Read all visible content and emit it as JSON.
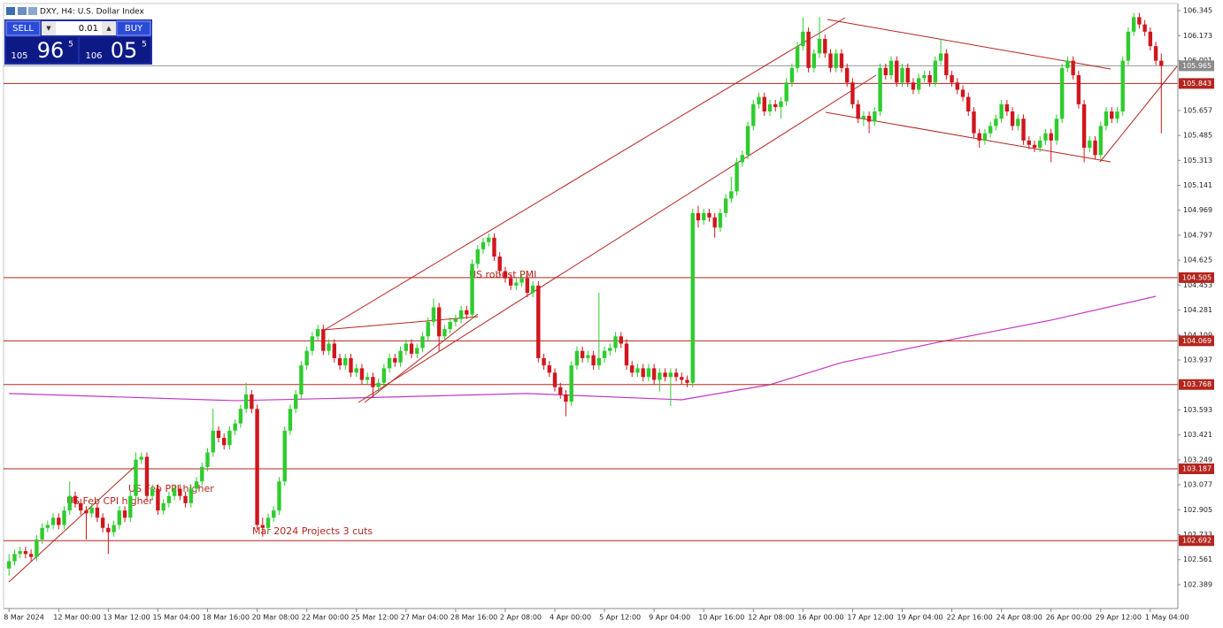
{
  "chart_data": {
    "type": "candlestick",
    "title": "DXY, H4: U.S. Dollar Index",
    "up_color": "#2ecc2e",
    "down_color": "#d0161d",
    "level_color": "#b3261e",
    "price_color": "#9a9a9a",
    "ylim": [
      102.224,
      106.394
    ],
    "xlim": [
      -1,
      212
    ],
    "yticks": [
      106.345,
      106.173,
      106.001,
      105.657,
      105.485,
      105.313,
      105.141,
      104.969,
      104.797,
      104.625,
      104.453,
      104.281,
      104.109,
      103.937,
      103.593,
      103.421,
      103.249,
      103.077,
      102.905,
      102.733,
      102.561,
      102.389
    ],
    "xticks": [
      {
        "value": 0,
        "label": "8 Mar 2024"
      },
      {
        "value": 9,
        "label": "12 Mar 00:00"
      },
      {
        "value": 18,
        "label": "13 Mar 12:00"
      },
      {
        "value": 27,
        "label": "15 Mar 04:00"
      },
      {
        "value": 36,
        "label": "18 Mar 16:00"
      },
      {
        "value": 45,
        "label": "20 Mar 08:00"
      },
      {
        "value": 54,
        "label": "22 Mar 00:00"
      },
      {
        "value": 63,
        "label": "25 Mar 12:00"
      },
      {
        "value": 72,
        "label": "27 Mar 04:00"
      },
      {
        "value": 81,
        "label": "28 Mar 16:00"
      },
      {
        "value": 90,
        "label": "2 Apr 08:00"
      },
      {
        "value": 99,
        "label": "4 Apr 00:00"
      },
      {
        "value": 108,
        "label": "5 Apr 12:00"
      },
      {
        "value": 117,
        "label": "9 Apr 04:00"
      },
      {
        "value": 126,
        "label": "10 Apr 16:00"
      },
      {
        "value": 135,
        "label": "12 Apr 08:00"
      },
      {
        "value": 144,
        "label": "16 Apr 00:00"
      },
      {
        "value": 153,
        "label": "17 Apr 12:00"
      },
      {
        "value": 162,
        "label": "19 Apr 04:00"
      },
      {
        "value": 171,
        "label": "22 Apr 16:00"
      },
      {
        "value": 180,
        "label": "24 Apr 08:00"
      },
      {
        "value": 189,
        "label": "26 Apr 00:00"
      },
      {
        "value": 198,
        "label": "29 Apr 12:00"
      },
      {
        "value": 207,
        "label": "1 May 04:00"
      }
    ],
    "levels": [
      105.843,
      104.505,
      104.069,
      103.768,
      103.187,
      102.692
    ],
    "current_price": 105.965,
    "moving_average": {
      "color": "#c438c4",
      "x": [
        0,
        41,
        62,
        94,
        122,
        138,
        151,
        170,
        189,
        208
      ],
      "values": [
        103.706,
        103.657,
        103.675,
        103.706,
        103.663,
        103.767,
        103.919,
        104.071,
        104.212,
        104.376
      ]
    },
    "annotations": [
      "US Feb CPI higher",
      "US Feb PPI higher",
      "Mar 2024 Projects 3 cuts",
      "US robust PMI"
    ],
    "candles": [
      [
        102.5,
        102.6,
        102.45,
        102.55
      ],
      [
        102.55,
        102.63,
        102.52,
        102.6
      ],
      [
        102.6,
        102.65,
        102.57,
        102.62
      ],
      [
        102.62,
        102.65,
        102.57,
        102.6
      ],
      [
        102.6,
        102.63,
        102.55,
        102.58
      ],
      [
        102.58,
        102.73,
        102.55,
        102.7
      ],
      [
        102.7,
        102.81,
        102.67,
        102.78
      ],
      [
        102.78,
        102.83,
        102.75,
        102.8
      ],
      [
        102.8,
        102.88,
        102.77,
        102.85
      ],
      [
        102.85,
        102.88,
        102.77,
        102.8
      ],
      [
        102.8,
        102.93,
        102.77,
        102.9
      ],
      [
        102.9,
        103.1,
        102.87,
        103.0
      ],
      [
        103.0,
        103.03,
        102.92,
        102.95
      ],
      [
        102.95,
        102.98,
        102.87,
        102.9
      ],
      [
        102.9,
        102.93,
        102.7,
        102.88
      ],
      [
        102.88,
        102.95,
        102.85,
        102.92
      ],
      [
        102.92,
        102.95,
        102.82,
        102.85
      ],
      [
        102.85,
        102.88,
        102.75,
        102.78
      ],
      [
        102.78,
        102.81,
        102.6,
        102.75
      ],
      [
        102.75,
        102.83,
        102.72,
        102.8
      ],
      [
        102.8,
        102.93,
        102.77,
        102.9
      ],
      [
        102.9,
        102.93,
        102.82,
        102.85
      ],
      [
        102.85,
        103.03,
        102.82,
        103.0
      ],
      [
        103.0,
        103.3,
        102.97,
        103.25
      ],
      [
        103.25,
        103.3,
        103.22,
        103.27
      ],
      [
        103.27,
        103.3,
        102.97,
        103.0
      ],
      [
        103.0,
        103.08,
        102.97,
        103.05
      ],
      [
        103.05,
        103.08,
        102.87,
        102.9
      ],
      [
        102.9,
        102.98,
        102.87,
        102.95
      ],
      [
        102.95,
        103.03,
        102.92,
        103.0
      ],
      [
        103.0,
        103.08,
        102.97,
        103.05
      ],
      [
        103.05,
        103.08,
        102.97,
        103.0
      ],
      [
        103.0,
        103.03,
        102.92,
        102.95
      ],
      [
        102.95,
        103.08,
        102.92,
        103.05
      ],
      [
        103.05,
        103.13,
        103.02,
        103.1
      ],
      [
        103.1,
        103.23,
        103.07,
        103.2
      ],
      [
        103.2,
        103.33,
        103.17,
        103.3
      ],
      [
        103.3,
        103.6,
        103.27,
        103.45
      ],
      [
        103.45,
        103.48,
        103.37,
        103.4
      ],
      [
        103.4,
        103.43,
        103.32,
        103.35
      ],
      [
        103.35,
        103.48,
        103.32,
        103.45
      ],
      [
        103.45,
        103.53,
        103.42,
        103.5
      ],
      [
        103.5,
        103.63,
        103.47,
        103.6
      ],
      [
        103.6,
        103.78,
        103.57,
        103.7
      ],
      [
        103.7,
        103.73,
        103.57,
        103.6
      ],
      [
        103.6,
        103.63,
        102.77,
        102.8
      ],
      [
        102.8,
        102.85,
        102.72,
        102.78
      ],
      [
        102.78,
        102.88,
        102.75,
        102.85
      ],
      [
        102.85,
        102.93,
        102.82,
        102.9
      ],
      [
        102.9,
        103.13,
        102.87,
        103.1
      ],
      [
        103.1,
        103.48,
        103.07,
        103.45
      ],
      [
        103.45,
        103.63,
        103.42,
        103.6
      ],
      [
        103.6,
        103.73,
        103.57,
        103.7
      ],
      [
        103.7,
        103.93,
        103.67,
        103.9
      ],
      [
        103.9,
        104.03,
        103.87,
        104.0
      ],
      [
        104.0,
        104.13,
        103.97,
        104.1
      ],
      [
        104.1,
        104.18,
        104.07,
        104.15
      ],
      [
        104.15,
        104.18,
        103.97,
        104.0
      ],
      [
        104.0,
        104.08,
        103.97,
        104.05
      ],
      [
        104.05,
        104.08,
        103.92,
        103.95
      ],
      [
        103.95,
        103.98,
        103.87,
        103.9
      ],
      [
        103.9,
        103.98,
        103.87,
        103.95
      ],
      [
        103.95,
        103.98,
        103.82,
        103.85
      ],
      [
        103.85,
        103.91,
        103.82,
        103.88
      ],
      [
        103.88,
        103.91,
        103.77,
        103.8
      ],
      [
        103.8,
        103.85,
        103.77,
        103.82
      ],
      [
        103.82,
        103.85,
        103.68,
        103.75
      ],
      [
        103.75,
        103.81,
        103.72,
        103.78
      ],
      [
        103.78,
        103.91,
        103.75,
        103.88
      ],
      [
        103.88,
        103.98,
        103.85,
        103.95
      ],
      [
        103.95,
        103.98,
        103.89,
        103.92
      ],
      [
        103.92,
        104.03,
        103.89,
        104.0
      ],
      [
        104.0,
        104.08,
        103.97,
        104.05
      ],
      [
        104.05,
        104.08,
        103.95,
        103.98
      ],
      [
        103.98,
        104.05,
        103.95,
        104.02
      ],
      [
        104.02,
        104.13,
        103.99,
        104.1
      ],
      [
        104.1,
        104.23,
        104.07,
        104.2
      ],
      [
        104.2,
        104.36,
        104.17,
        104.3
      ],
      [
        104.3,
        104.33,
        104.0,
        104.1
      ],
      [
        104.1,
        104.18,
        104.07,
        104.15
      ],
      [
        104.15,
        104.23,
        104.12,
        104.2
      ],
      [
        104.2,
        104.25,
        104.17,
        104.22
      ],
      [
        104.22,
        104.31,
        104.19,
        104.28
      ],
      [
        104.28,
        104.31,
        104.22,
        104.25
      ],
      [
        104.25,
        104.63,
        104.22,
        104.6
      ],
      [
        104.6,
        104.73,
        104.57,
        104.7
      ],
      [
        104.7,
        104.78,
        104.67,
        104.75
      ],
      [
        104.75,
        104.81,
        104.72,
        104.78
      ],
      [
        104.78,
        104.81,
        104.62,
        104.65
      ],
      [
        104.65,
        104.68,
        104.52,
        104.55
      ],
      [
        104.55,
        104.58,
        104.47,
        104.5
      ],
      [
        104.5,
        104.53,
        104.42,
        104.45
      ],
      [
        104.45,
        104.5,
        104.42,
        104.47
      ],
      [
        104.47,
        104.53,
        104.44,
        104.5
      ],
      [
        104.5,
        104.53,
        104.37,
        104.4
      ],
      [
        104.4,
        104.48,
        104.37,
        104.45
      ],
      [
        104.45,
        104.48,
        103.92,
        103.95
      ],
      [
        103.95,
        103.98,
        103.87,
        103.9
      ],
      [
        103.9,
        103.93,
        103.82,
        103.85
      ],
      [
        103.85,
        103.88,
        103.72,
        103.75
      ],
      [
        103.75,
        103.78,
        103.67,
        103.7
      ],
      [
        103.7,
        103.73,
        103.55,
        103.65
      ],
      [
        103.65,
        103.93,
        103.62,
        103.9
      ],
      [
        103.9,
        104.03,
        103.87,
        104.0
      ],
      [
        104.0,
        104.03,
        103.92,
        103.95
      ],
      [
        103.95,
        104.0,
        103.92,
        103.97
      ],
      [
        103.97,
        104.0,
        103.87,
        103.9
      ],
      [
        103.9,
        104.4,
        103.87,
        103.95
      ],
      [
        103.95,
        104.03,
        103.92,
        104.0
      ],
      [
        104.0,
        104.05,
        103.97,
        104.02
      ],
      [
        104.02,
        104.13,
        103.99,
        104.1
      ],
      [
        104.1,
        104.13,
        104.02,
        104.05
      ],
      [
        104.05,
        104.08,
        103.87,
        103.9
      ],
      [
        103.9,
        103.93,
        103.82,
        103.85
      ],
      [
        103.85,
        103.91,
        103.82,
        103.88
      ],
      [
        103.88,
        103.91,
        103.79,
        103.82
      ],
      [
        103.82,
        103.91,
        103.79,
        103.88
      ],
      [
        103.88,
        103.91,
        103.77,
        103.8
      ],
      [
        103.8,
        103.88,
        103.72,
        103.85
      ],
      [
        103.85,
        103.88,
        103.79,
        103.82
      ],
      [
        103.82,
        103.88,
        103.62,
        103.85
      ],
      [
        103.85,
        103.88,
        103.79,
        103.82
      ],
      [
        103.82,
        103.85,
        103.77,
        103.8
      ],
      [
        103.8,
        103.83,
        103.75,
        103.78
      ],
      [
        103.78,
        104.98,
        103.75,
        104.95
      ],
      [
        104.95,
        105.0,
        104.85,
        104.9
      ],
      [
        104.9,
        104.98,
        104.87,
        104.95
      ],
      [
        104.95,
        104.98,
        104.89,
        104.92
      ],
      [
        104.92,
        104.95,
        104.78,
        104.85
      ],
      [
        104.85,
        104.98,
        104.82,
        104.95
      ],
      [
        104.95,
        105.08,
        104.92,
        105.05
      ],
      [
        105.05,
        105.2,
        105.02,
        105.1
      ],
      [
        105.1,
        105.33,
        105.07,
        105.3
      ],
      [
        105.3,
        105.38,
        105.27,
        105.35
      ],
      [
        105.35,
        105.58,
        105.32,
        105.55
      ],
      [
        105.55,
        105.73,
        105.52,
        105.7
      ],
      [
        105.7,
        105.78,
        105.67,
        105.75
      ],
      [
        105.75,
        105.78,
        105.62,
        105.65
      ],
      [
        105.65,
        105.73,
        105.62,
        105.7
      ],
      [
        105.7,
        105.73,
        105.65,
        105.68
      ],
      [
        105.68,
        105.75,
        105.6,
        105.72
      ],
      [
        105.72,
        105.88,
        105.69,
        105.85
      ],
      [
        105.85,
        105.98,
        105.82,
        105.95
      ],
      [
        105.95,
        106.13,
        105.92,
        106.1
      ],
      [
        106.1,
        106.3,
        106.07,
        106.2
      ],
      [
        106.2,
        106.23,
        105.92,
        105.95
      ],
      [
        105.95,
        106.08,
        105.92,
        106.05
      ],
      [
        106.05,
        106.3,
        106.02,
        106.15
      ],
      [
        106.15,
        106.18,
        106.02,
        106.05
      ],
      [
        106.05,
        106.08,
        105.92,
        105.95
      ],
      [
        105.95,
        106.08,
        105.92,
        106.05
      ],
      [
        106.05,
        106.08,
        105.92,
        105.95
      ],
      [
        105.95,
        105.98,
        105.82,
        105.85
      ],
      [
        105.85,
        105.88,
        105.67,
        105.7
      ],
      [
        105.7,
        105.73,
        105.57,
        105.6
      ],
      [
        105.6,
        105.65,
        105.55,
        105.62
      ],
      [
        105.62,
        105.65,
        105.5,
        105.58
      ],
      [
        105.58,
        105.68,
        105.55,
        105.65
      ],
      [
        105.65,
        105.98,
        105.62,
        105.95
      ],
      [
        105.95,
        105.98,
        105.87,
        105.9
      ],
      [
        105.9,
        106.03,
        105.87,
        106.0
      ],
      [
        106.0,
        106.03,
        105.82,
        105.85
      ],
      [
        105.85,
        105.98,
        105.82,
        105.95
      ],
      [
        105.95,
        105.98,
        105.82,
        105.85
      ],
      [
        105.85,
        105.88,
        105.77,
        105.8
      ],
      [
        105.8,
        105.91,
        105.77,
        105.88
      ],
      [
        105.88,
        105.93,
        105.85,
        105.9
      ],
      [
        105.9,
        105.93,
        105.82,
        105.85
      ],
      [
        105.85,
        106.03,
        105.82,
        106.0
      ],
      [
        106.0,
        106.15,
        105.97,
        106.05
      ],
      [
        106.05,
        106.08,
        105.87,
        105.9
      ],
      [
        105.9,
        105.93,
        105.82,
        105.85
      ],
      [
        105.85,
        105.88,
        105.77,
        105.8
      ],
      [
        105.8,
        105.83,
        105.72,
        105.75
      ],
      [
        105.75,
        105.78,
        105.62,
        105.65
      ],
      [
        105.65,
        105.68,
        105.47,
        105.5
      ],
      [
        105.5,
        105.53,
        105.4,
        105.45
      ],
      [
        105.45,
        105.53,
        105.42,
        105.5
      ],
      [
        105.5,
        105.58,
        105.47,
        105.55
      ],
      [
        105.55,
        105.63,
        105.52,
        105.6
      ],
      [
        105.6,
        105.73,
        105.57,
        105.7
      ],
      [
        105.7,
        105.73,
        105.62,
        105.65
      ],
      [
        105.65,
        105.68,
        105.52,
        105.55
      ],
      [
        105.55,
        105.63,
        105.52,
        105.6
      ],
      [
        105.6,
        105.63,
        105.42,
        105.45
      ],
      [
        105.45,
        105.48,
        105.39,
        105.42
      ],
      [
        105.42,
        105.45,
        105.37,
        105.4
      ],
      [
        105.4,
        105.48,
        105.37,
        105.45
      ],
      [
        105.45,
        105.53,
        105.42,
        105.5
      ],
      [
        105.5,
        105.53,
        105.3,
        105.45
      ],
      [
        105.45,
        105.63,
        105.42,
        105.6
      ],
      [
        105.6,
        105.98,
        105.57,
        105.95
      ],
      [
        105.95,
        106.03,
        105.92,
        106.0
      ],
      [
        106.0,
        106.03,
        105.87,
        105.9
      ],
      [
        105.9,
        105.93,
        105.67,
        105.7
      ],
      [
        105.7,
        105.73,
        105.3,
        105.4
      ],
      [
        105.4,
        105.48,
        105.37,
        105.45
      ],
      [
        105.45,
        105.48,
        105.32,
        105.35
      ],
      [
        105.35,
        105.58,
        105.32,
        105.55
      ],
      [
        105.55,
        105.68,
        105.52,
        105.65
      ],
      [
        105.65,
        105.68,
        105.57,
        105.6
      ],
      [
        105.6,
        105.68,
        105.57,
        105.65
      ],
      [
        105.65,
        106.03,
        105.62,
        106.0
      ],
      [
        106.0,
        106.23,
        105.97,
        106.2
      ],
      [
        106.2,
        106.33,
        106.17,
        106.3
      ],
      [
        106.3,
        106.33,
        106.22,
        106.25
      ],
      [
        106.25,
        106.28,
        106.17,
        106.2
      ],
      [
        106.2,
        106.23,
        106.07,
        106.1
      ],
      [
        106.1,
        106.13,
        105.97,
        106.0
      ],
      [
        106.0,
        106.05,
        105.5,
        105.965
      ]
    ]
  },
  "trade_panel": {
    "sell": "SELL",
    "buy": "BUY",
    "lot": 0.01,
    "bid": [
      "105",
      "96",
      "5"
    ],
    "ask": [
      "106",
      "05",
      "5"
    ]
  }
}
